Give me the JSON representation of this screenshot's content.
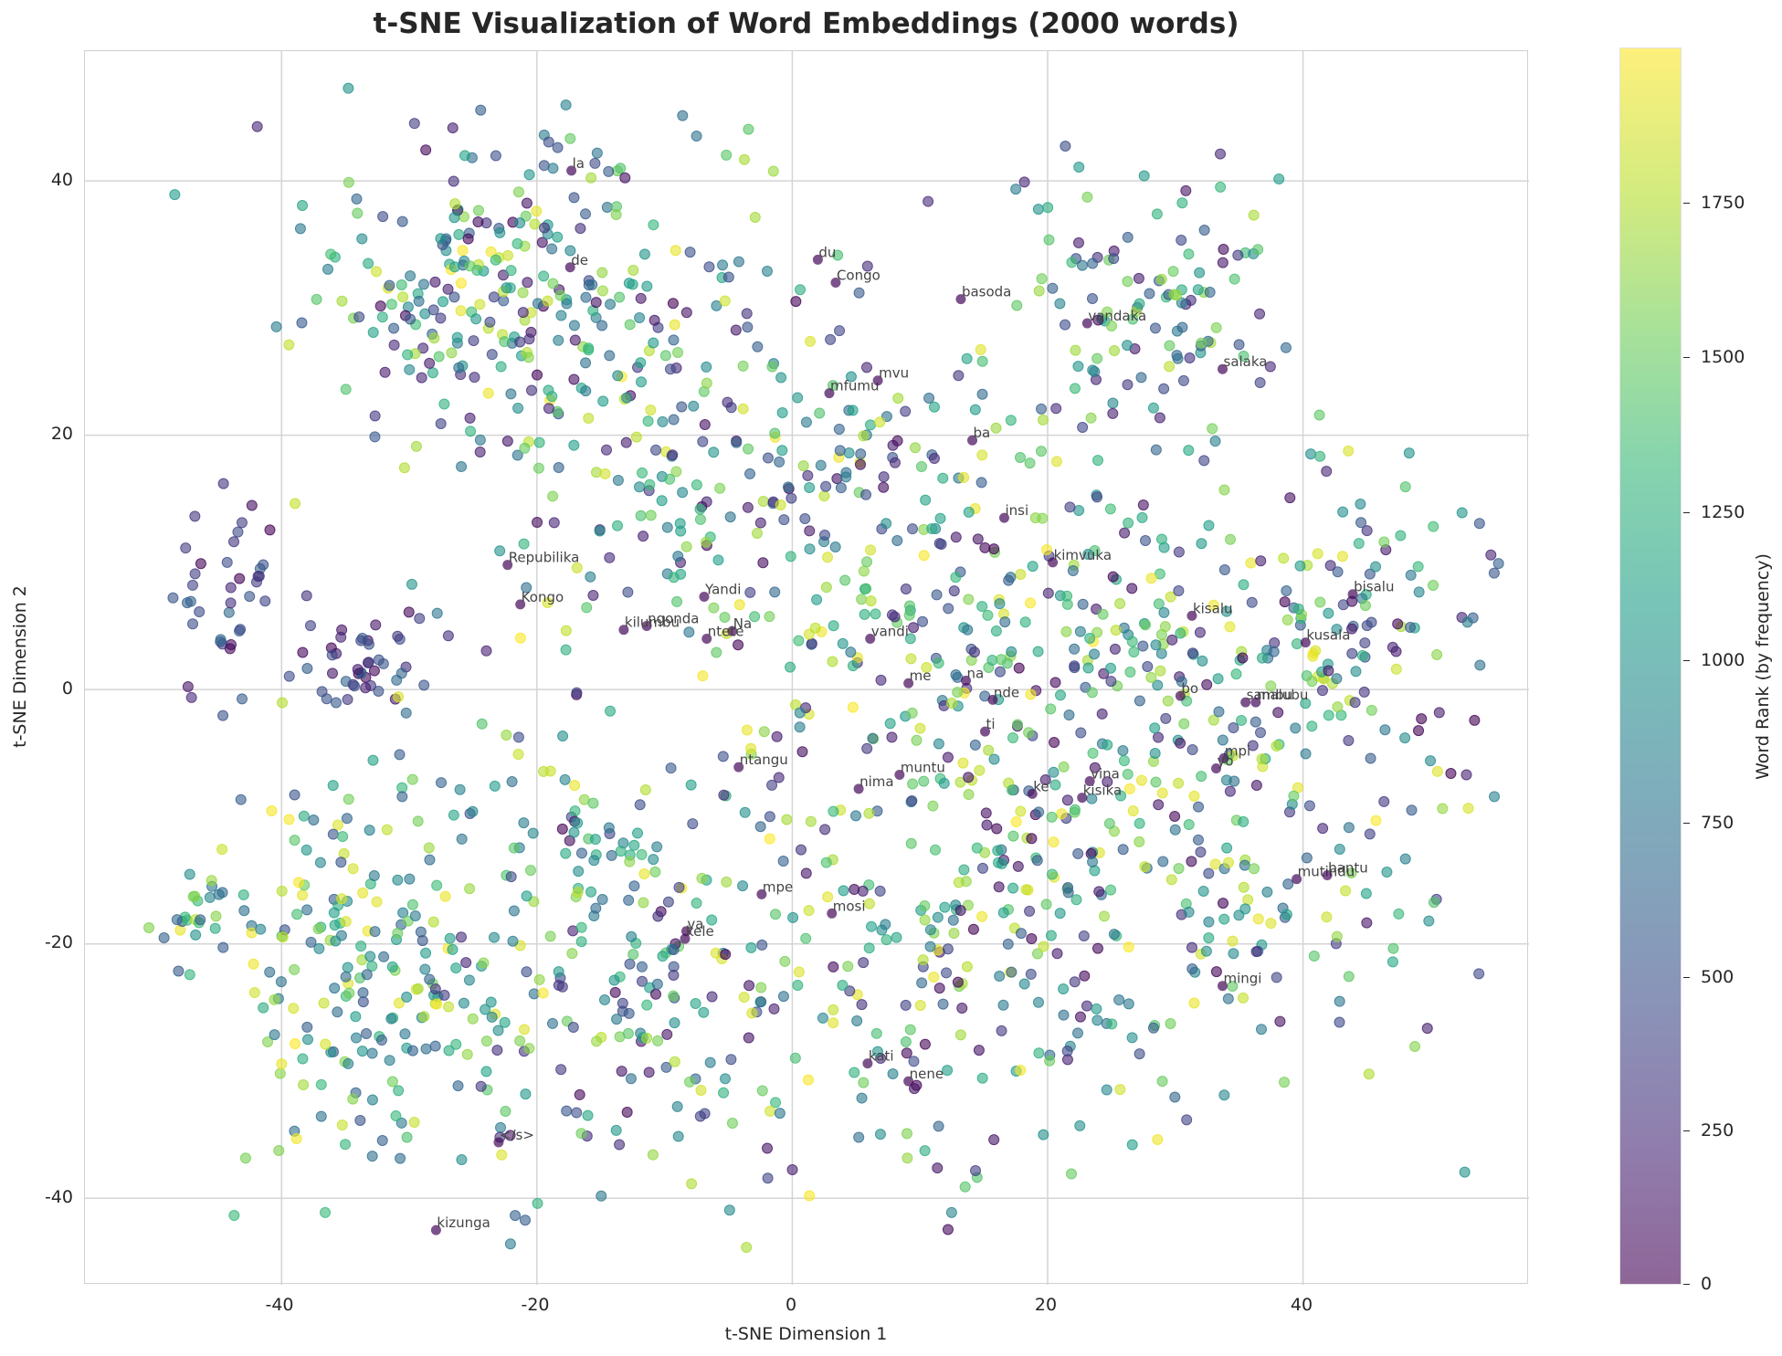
{
  "chart_data": {
    "type": "scatter",
    "title": "t-SNE Visualization of Word Embeddings (2000 words)",
    "xlabel": "t-SNE Dimension 1",
    "ylabel": "t-SNE Dimension 2",
    "xlim": [
      -55.4,
      57.7
    ],
    "ylim": [
      -46.8,
      50.2
    ],
    "xticks": [
      -40,
      -20,
      0,
      20,
      40
    ],
    "yticks": [
      -40,
      -20,
      0,
      20,
      40
    ],
    "xtick_labels": [
      "-40",
      "-20",
      "0",
      "20",
      "40"
    ],
    "ytick_labels": [
      "-40",
      "-20",
      "0",
      "20",
      "40"
    ],
    "grid": true,
    "n_points": 2000,
    "colormap": "viridis",
    "point_alpha": 0.6,
    "colorbar": {
      "label": "Word Rank (by frequency)",
      "range": [
        0,
        1999
      ],
      "ticks": [
        0,
        250,
        500,
        750,
        1000,
        1250,
        1500,
        1750
      ],
      "tick_labels": [
        "0",
        "250",
        "500",
        "750",
        "1000",
        "1250",
        "1500",
        "1750"
      ]
    },
    "annotated_points": [
      {
        "word": "la",
        "x": -17.3,
        "y": 40.8
      },
      {
        "word": "de",
        "x": -17.4,
        "y": 33.2
      },
      {
        "word": "du",
        "x": 2.0,
        "y": 33.8
      },
      {
        "word": "Congo",
        "x": 3.4,
        "y": 32.0
      },
      {
        "word": "basoda",
        "x": 13.2,
        "y": 30.7
      },
      {
        "word": "vandaka",
        "x": 23.1,
        "y": 28.8
      },
      {
        "word": "salaka",
        "x": 33.7,
        "y": 25.2
      },
      {
        "word": "mfumu",
        "x": 2.9,
        "y": 23.3
      },
      {
        "word": "mvu",
        "x": 6.7,
        "y": 24.3
      },
      {
        "word": "ba",
        "x": 14.1,
        "y": 19.6
      },
      {
        "word": "insi",
        "x": 16.6,
        "y": 13.5
      },
      {
        "word": "kimvuka",
        "x": 20.4,
        "y": 10.0
      },
      {
        "word": "Repubilika",
        "x": -22.3,
        "y": 9.8
      },
      {
        "word": "Kongo",
        "x": -21.3,
        "y": 6.7
      },
      {
        "word": "Yandi",
        "x": -6.9,
        "y": 7.3
      },
      {
        "word": "ngonda",
        "x": -11.4,
        "y": 5.0
      },
      {
        "word": "kilumbu",
        "x": -13.2,
        "y": 4.7
      },
      {
        "word": "Na",
        "x": -4.7,
        "y": 4.6
      },
      {
        "word": "ntete",
        "x": -6.7,
        "y": 4.0
      },
      {
        "word": "vandi",
        "x": 6.1,
        "y": 4.0
      },
      {
        "word": "kisalu",
        "x": 31.3,
        "y": 5.8
      },
      {
        "word": "bisalu",
        "x": 43.9,
        "y": 7.5
      },
      {
        "word": "kusala",
        "x": 40.2,
        "y": 3.7
      },
      {
        "word": "me",
        "x": 9.1,
        "y": 0.5
      },
      {
        "word": "na",
        "x": 13.6,
        "y": 0.7
      },
      {
        "word": "nde",
        "x": 15.7,
        "y": -0.8
      },
      {
        "word": "bo",
        "x": 30.4,
        "y": -0.5
      },
      {
        "word": "sambu",
        "x": 35.5,
        "y": -1.0
      },
      {
        "word": "malubu",
        "x": 36.3,
        "y": -1.0
      },
      {
        "word": "ti",
        "x": 15.1,
        "y": -3.3
      },
      {
        "word": "mpi",
        "x": 33.8,
        "y": -5.4
      },
      {
        "word": "yo",
        "x": 33.2,
        "y": -6.2
      },
      {
        "word": "ntangu",
        "x": -4.2,
        "y": -6.1
      },
      {
        "word": "muntu",
        "x": 8.4,
        "y": -6.7
      },
      {
        "word": "nima",
        "x": 5.2,
        "y": -7.8
      },
      {
        "word": "ke",
        "x": 18.8,
        "y": -8.2
      },
      {
        "word": "vina",
        "x": 23.3,
        "y": -7.2
      },
      {
        "word": "kisika",
        "x": 22.7,
        "y": -8.5
      },
      {
        "word": "mutindu",
        "x": 39.5,
        "y": -14.9
      },
      {
        "word": "bantu",
        "x": 41.9,
        "y": -14.6
      },
      {
        "word": "mpe",
        "x": -2.4,
        "y": -16.1
      },
      {
        "word": "mosi",
        "x": 3.1,
        "y": -17.6
      },
      {
        "word": "va",
        "x": -8.3,
        "y": -19.0
      },
      {
        "word": "kele",
        "x": -8.4,
        "y": -19.6
      },
      {
        "word": "mingi",
        "x": 33.7,
        "y": -23.3
      },
      {
        "word": "kati",
        "x": 5.9,
        "y": -29.4
      },
      {
        "word": "nene",
        "x": 9.1,
        "y": -30.8
      },
      {
        "word": "</s>",
        "x": -23.0,
        "y": -35.6
      },
      {
        "word": "kizunga",
        "x": -27.9,
        "y": -42.5
      }
    ]
  }
}
